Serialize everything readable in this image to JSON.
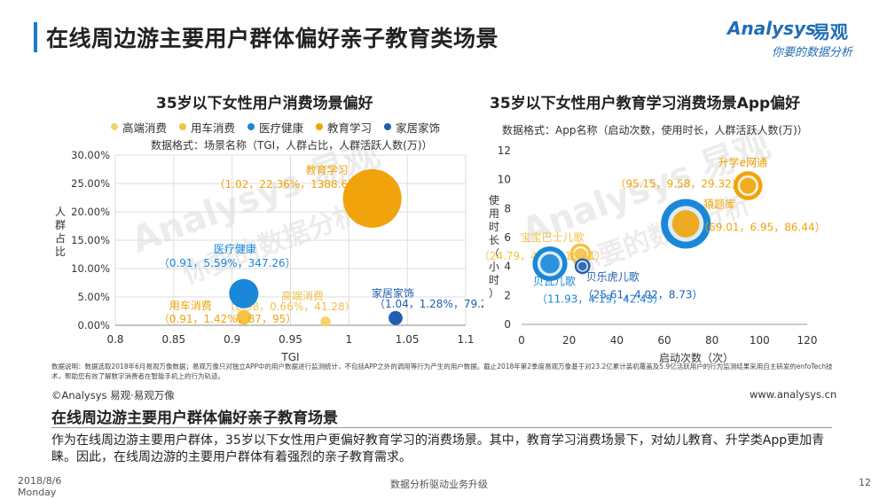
{
  "page": {
    "title": "在线周边游主要用户群体偏好亲子教育类场景",
    "logo_en": "Analysys",
    "logo_cn": "易观",
    "logo_slogan": "你要的数据分析",
    "footnote": "数据说明：数据选取2018年6月易观万像数据；易观万像只对独立APP中的用户数据进行监测统计，不包括APP之外的调用等行为产生的用户数据。截止2018年第2季度易观万像基于对23.2亿累计装机覆盖及5.9亿活跃用户的行为监测结果采用自主研发的enfoTech技术，帮助您有效了解数字消费者在智能手机上的行为轨迹。",
    "copyright": "©Analysys 易观·易观万像",
    "website": "www.analysys.cn",
    "summary_title": "在线周边游主要用户群体偏好亲子教育场景",
    "summary_body": "作为在线周边游主要用户群体，35岁以下女性用户更偏好教育学习的消费场景。其中，教育学习消费场景下，对幼儿教育、升学类App更加青睐。因此，在线周边游的主要用户群体有着强烈的亲子教育需求。",
    "date_line1": "2018/8/6",
    "date_line2": "Monday",
    "footer_center": "数据分析驱动业务升级",
    "page_number": "12",
    "watermark_en": "Analysys 易观",
    "watermark_cn": "你要的数据分析",
    "colors": {
      "accent": "#1f7cc2",
      "yellow": "#f5c242",
      "blue": "#1a87d8",
      "orange": "#f0a30a",
      "darkblue": "#1f5fb0"
    }
  },
  "chart_data": [
    {
      "type": "scatter",
      "title": "35岁以下女性用户消费场景偏好",
      "subtitle": "数据格式：场景名称（TGI，人群占比，人群活跃人数(万)）",
      "xlabel": "TGI",
      "ylabel": "人群占比",
      "xlim": [
        0.8,
        1.1
      ],
      "ylim": [
        0,
        0.3
      ],
      "xticks": [
        "0.8",
        "0.85",
        "0.9",
        "0.95",
        "1",
        "1.05",
        "1.1"
      ],
      "yticks": [
        "0.00%",
        "5.00%",
        "10.00%",
        "15.00%",
        "20.00%",
        "25.00%",
        "30.00%"
      ],
      "grid": true,
      "legend_position": "top",
      "series": [
        {
          "name": "高端消费",
          "color": "#f5d36b",
          "points": [
            {
              "x": 0.98,
              "y": 0.0066,
              "size": 41.28,
              "name": "高端消费",
              "label": "（0.98，0.66%，41.28）"
            }
          ]
        },
        {
          "name": "用车消费",
          "color": "#f5c242",
          "points": [
            {
              "x": 0.91,
              "y": 0.0142,
              "size": 87.95,
              "name": "用车消费",
              "label": "（0.91，1.42%，87，95）"
            }
          ]
        },
        {
          "name": "医疗健康",
          "color": "#1a87d8",
          "points": [
            {
              "x": 0.91,
              "y": 0.0559,
              "size": 347.26,
              "name": "医疗健康",
              "label": "（0.91，5.59%，347.26）"
            }
          ]
        },
        {
          "name": "教育学习",
          "color": "#f0a30a",
          "points": [
            {
              "x": 1.02,
              "y": 0.2236,
              "size": 1388.65,
              "name": "教育学习",
              "label": "（1.02，22.36%，1388.65）"
            }
          ]
        },
        {
          "name": "家居家饰",
          "color": "#1f5fb0",
          "points": [
            {
              "x": 1.04,
              "y": 0.0128,
              "size": 79.27,
              "name": "家居家饰",
              "label": "（1.04，1.28%，79.27）"
            }
          ]
        }
      ]
    },
    {
      "type": "scatter",
      "title": "35岁以下女性用户教育学习消费场景App偏好",
      "subtitle": "数据格式：App名称（启动次数，使用时长，人群活跃人数(万)）",
      "xlabel": "启动次数（次）",
      "ylabel": "使用时长（小时）",
      "xlim": [
        0,
        120
      ],
      "ylim": [
        0,
        12
      ],
      "xticks": [
        "0",
        "20",
        "40",
        "60",
        "80",
        "100",
        "120"
      ],
      "yticks": [
        "0",
        "2",
        "4",
        "6",
        "8",
        "10",
        "12"
      ],
      "grid": false,
      "series": [
        {
          "name": "升学e网通",
          "color": "#f0a30a",
          "points": [
            {
              "x": 95.15,
              "y": 9.58,
              "size": 29.32,
              "name": "升学e网通",
              "label": "（95.15，9.58，29.32）"
            }
          ]
        },
        {
          "name": "猿题库",
          "color": "#f0a30a",
          "points": [
            {
              "x": 69.01,
              "y": 6.95,
              "size": 86.44,
              "name": "猿题库",
              "label": "（69.01，6.95，86.44）"
            }
          ]
        },
        {
          "name": "宝宝巴士儿歌",
          "color": "#f5c242",
          "points": [
            {
              "x": 24.79,
              "y": 4.85,
              "size": 16.41,
              "name": "宝宝巴士儿歌",
              "label": "（24.79，4.85，16.41）"
            }
          ]
        },
        {
          "name": "贝乐虎儿歌",
          "color": "#1f5fb0",
          "points": [
            {
              "x": 25.61,
              "y": 4.02,
              "size": 8.73,
              "name": "贝乐虎儿歌",
              "label": "（25.61，4.02，8.73）"
            }
          ]
        },
        {
          "name": "贝瓦儿歌",
          "color": "#1a87d8",
          "points": [
            {
              "x": 11.93,
              "y": 4.19,
              "size": 42.43,
              "name": "贝瓦儿歌",
              "label": "（11.93，4.19，42.43）"
            }
          ]
        }
      ]
    }
  ]
}
